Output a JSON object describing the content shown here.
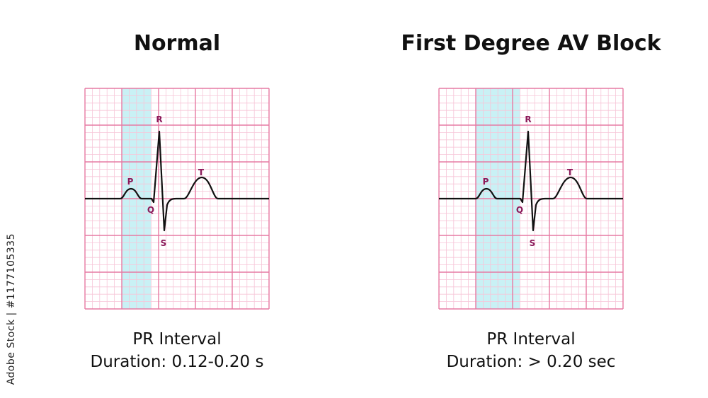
{
  "panels": [
    {
      "title": "Normal",
      "pr_interval_label": "PR Interval",
      "duration": "Duration: 0.12-0.20 s",
      "wave_labels": {
        "P": "P",
        "Q": "Q",
        "R": "R",
        "S": "S",
        "T": "T"
      }
    },
    {
      "title": "First Degree AV Block",
      "pr_interval_label": "PR Interval",
      "duration": "Duration: > 0.20 sec",
      "wave_labels": {
        "P": "P",
        "Q": "Q",
        "R": "R",
        "S": "S",
        "T": "T"
      }
    }
  ],
  "watermark": "Adobe Stock | #1177105335",
  "colors": {
    "grid_major": "#e67aa3",
    "grid_minor": "#f7c6d8",
    "highlight": "#c9f1f5",
    "trace": "#111111",
    "wave_label": "#8b1a5a"
  }
}
